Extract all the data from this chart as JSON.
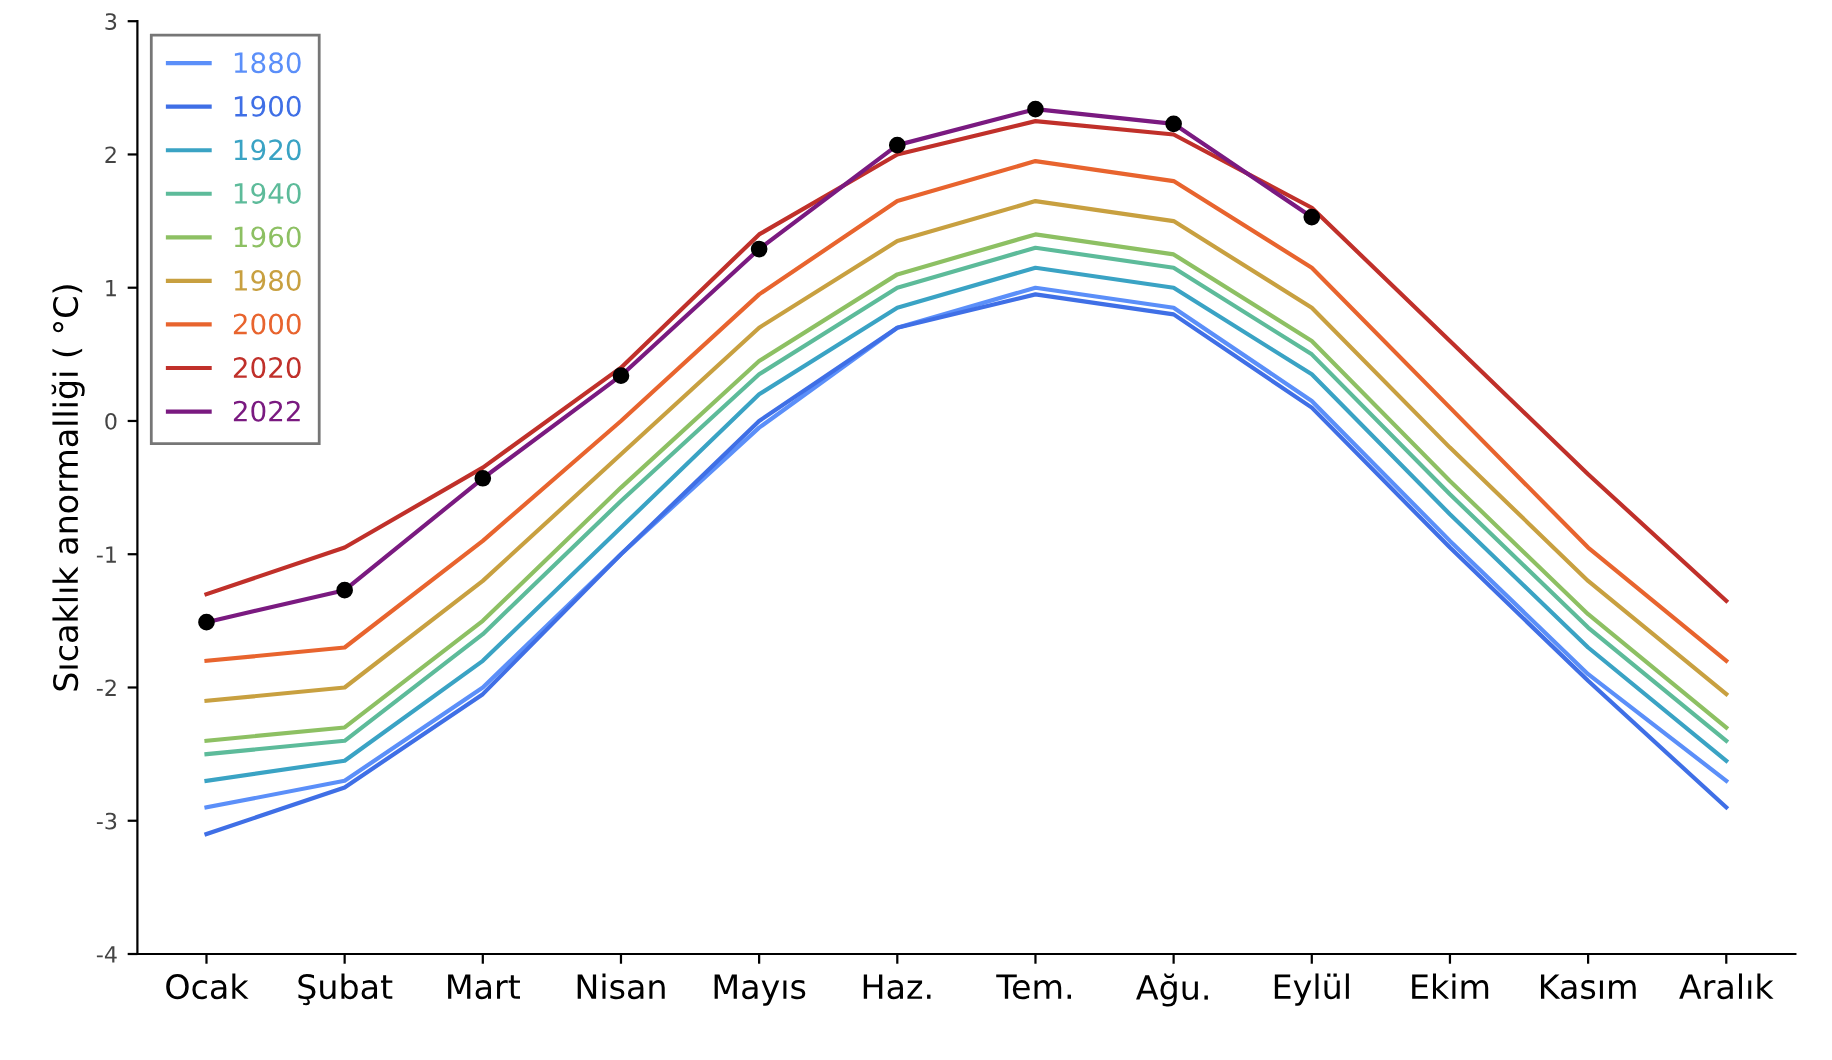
{
  "chart_data": {
    "type": "line",
    "ylabel": "Sıcaklık anormalliği ( °C)",
    "categories": [
      "Ocak",
      "Şubat",
      "Mart",
      "Nisan",
      "Mayıs",
      "Haz.",
      "Tem.",
      "Ağu.",
      "Eylül",
      "Ekim",
      "Kasım",
      "Aralık"
    ],
    "ylim": [
      -4,
      3
    ],
    "yticks": [
      -4,
      -3,
      -2,
      -1,
      0,
      1,
      2,
      3
    ],
    "grid": false,
    "legend": "top left",
    "series": [
      {
        "name": "1880",
        "color": "#5b8ff9",
        "values": [
          -2.9,
          -2.7,
          -2.0,
          -1.0,
          -0.05,
          0.7,
          1.0,
          0.85,
          0.15,
          -0.9,
          -1.9,
          -2.7
        ]
      },
      {
        "name": "1900",
        "color": "#3f6fe6",
        "values": [
          -3.1,
          -2.75,
          -2.05,
          -1.0,
          0.0,
          0.7,
          0.95,
          0.8,
          0.1,
          -0.95,
          -1.95,
          -2.9
        ]
      },
      {
        "name": "1920",
        "color": "#3aa3c4",
        "values": [
          -2.7,
          -2.55,
          -1.8,
          -0.8,
          0.2,
          0.85,
          1.15,
          1.0,
          0.35,
          -0.7,
          -1.7,
          -2.55
        ]
      },
      {
        "name": "1940",
        "color": "#5dbb9a",
        "values": [
          -2.5,
          -2.4,
          -1.6,
          -0.6,
          0.35,
          1.0,
          1.3,
          1.15,
          0.5,
          -0.55,
          -1.55,
          -2.4
        ]
      },
      {
        "name": "1960",
        "color": "#8dc063",
        "values": [
          -2.4,
          -2.3,
          -1.5,
          -0.5,
          0.45,
          1.1,
          1.4,
          1.25,
          0.6,
          -0.45,
          -1.45,
          -2.3
        ]
      },
      {
        "name": "1980",
        "color": "#c8a040",
        "values": [
          -2.1,
          -2.0,
          -1.2,
          -0.25,
          0.7,
          1.35,
          1.65,
          1.5,
          0.85,
          -0.2,
          -1.2,
          -2.05
        ]
      },
      {
        "name": "2000",
        "color": "#e8642e",
        "values": [
          -1.8,
          -1.7,
          -0.9,
          0.0,
          0.95,
          1.65,
          1.95,
          1.8,
          1.15,
          0.1,
          -0.95,
          -1.8
        ]
      },
      {
        "name": "2020",
        "color": "#c0302a",
        "values": [
          -1.3,
          -0.95,
          -0.35,
          0.4,
          1.4,
          2.0,
          2.25,
          2.15,
          1.6,
          0.6,
          -0.4,
          -1.35
        ]
      },
      {
        "name": "2022",
        "color": "#7a1a80",
        "marker": "circle",
        "values": [
          -1.51,
          -1.27,
          -0.43,
          0.34,
          1.29,
          2.07,
          2.34,
          2.23,
          1.53,
          null,
          null,
          null
        ]
      }
    ]
  }
}
